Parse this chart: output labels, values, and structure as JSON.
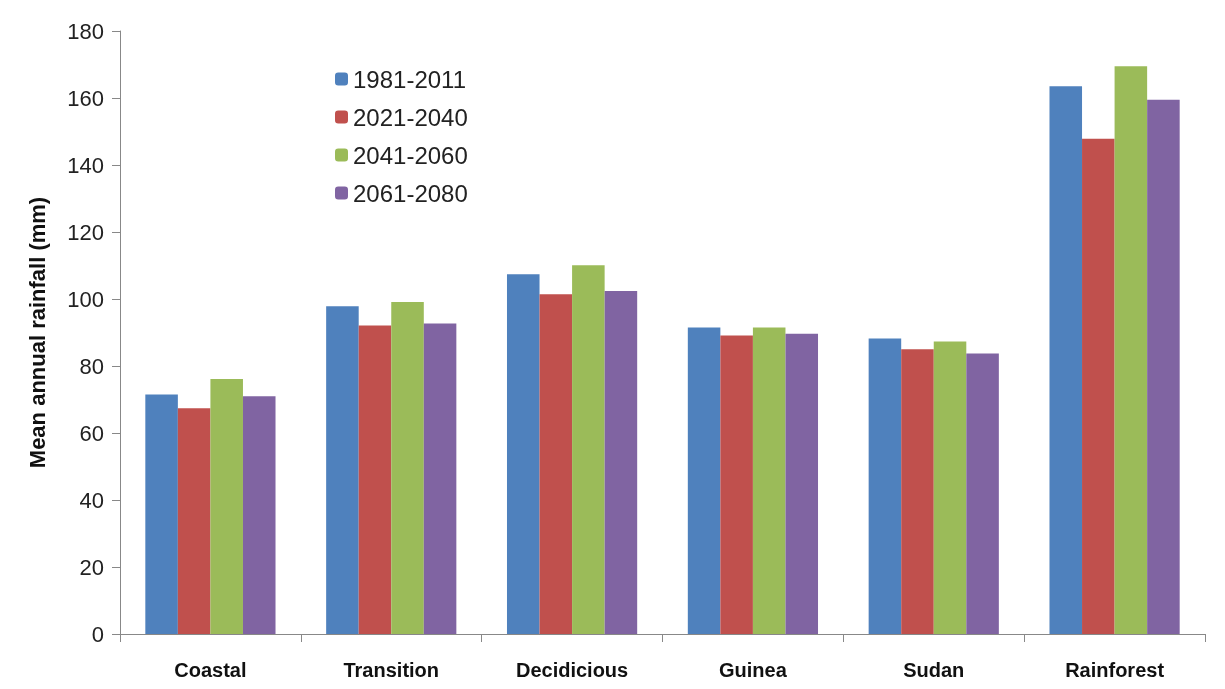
{
  "chart_data": {
    "type": "bar",
    "ylabel": "Mean annual rainfall (mm)",
    "categories": [
      "Coastal",
      "Transition",
      "Decidicious",
      "Guinea",
      "Sudan",
      "Rainforest"
    ],
    "series": [
      {
        "name": "1981-2011",
        "color": "#4f81bd",
        "values": [
          71.5,
          97.8,
          107.4,
          91.5,
          88.2,
          163.5
        ]
      },
      {
        "name": "2021-2040",
        "color": "#c0504d",
        "values": [
          67.4,
          92.1,
          101.4,
          89.1,
          85.0,
          147.8
        ]
      },
      {
        "name": "2041-2060",
        "color": "#9bbb59",
        "values": [
          76.1,
          99.1,
          110.1,
          91.5,
          87.3,
          169.5
        ]
      },
      {
        "name": "2061-2080",
        "color": "#8064a2",
        "values": [
          71.0,
          92.7,
          102.4,
          89.6,
          83.7,
          159.5
        ]
      }
    ],
    "ylim": [
      0,
      180
    ],
    "yticks": [
      0,
      20,
      40,
      60,
      80,
      100,
      120,
      140,
      160,
      180
    ],
    "grid": false,
    "legend": "top left"
  }
}
